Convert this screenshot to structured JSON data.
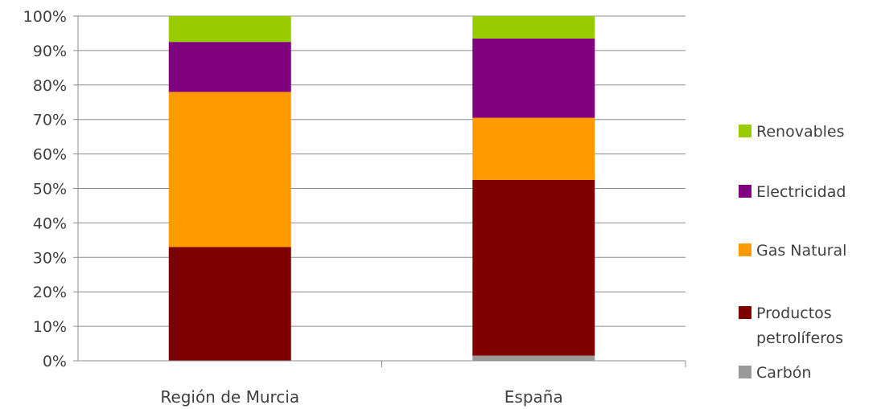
{
  "chart_data": {
    "type": "bar",
    "stacked": true,
    "categories": [
      "Región de Murcia",
      "España"
    ],
    "series": [
      {
        "name": "Carbón",
        "color": "#999999",
        "values": [
          0,
          1.5
        ]
      },
      {
        "name": "Productos petrolíferos",
        "color": "#7f0000",
        "values": [
          33,
          51
        ]
      },
      {
        "name": "Gas Natural",
        "color": "#ff9900",
        "values": [
          45,
          18
        ]
      },
      {
        "name": "Electricidad",
        "color": "#800080",
        "values": [
          14.5,
          23
        ]
      },
      {
        "name": "Renovables",
        "color": "#99cc00",
        "values": [
          7.5,
          6.5
        ]
      }
    ],
    "yticks": [
      "0%",
      "10%",
      "20%",
      "30%",
      "40%",
      "50%",
      "60%",
      "70%",
      "80%",
      "90%",
      "100%"
    ],
    "ylim": [
      0,
      100
    ],
    "grid": true,
    "legend_position": "right",
    "legend_entries": [
      {
        "lines": [
          "Renovables"
        ],
        "color": "#99cc00"
      },
      {
        "lines": [
          "Electricidad"
        ],
        "color": "#800080"
      },
      {
        "lines": [
          "Gas Natural"
        ],
        "color": "#ff9900"
      },
      {
        "lines": [
          "Productos",
          "petrolíferos"
        ],
        "color": "#7f0000"
      },
      {
        "lines": [
          "Carbón"
        ],
        "color": "#999999"
      }
    ]
  }
}
